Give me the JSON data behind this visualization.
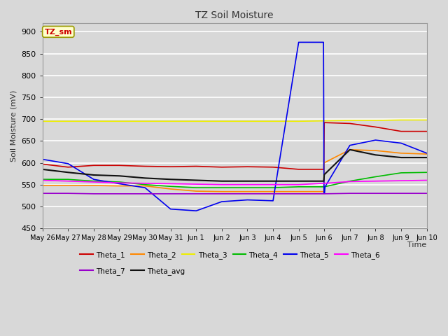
{
  "title": "TZ Soil Moisture",
  "ylabel": "Soil Moisture (mV)",
  "xlabel": "Time",
  "xlim": [
    0,
    15
  ],
  "ylim": [
    450,
    920
  ],
  "yticks": [
    450,
    500,
    550,
    600,
    650,
    700,
    750,
    800,
    850,
    900
  ],
  "xtick_labels": [
    "May 26",
    "May 27",
    "May 28",
    "May 29",
    "May 30",
    "May 31",
    "Jun 1",
    "Jun 2",
    "Jun 3",
    "Jun 4",
    "Jun 5",
    "Jun 6",
    "Jun 7",
    "Jun 8",
    "Jun 9",
    "Jun 10"
  ],
  "xtick_positions": [
    0,
    1,
    2,
    3,
    4,
    5,
    6,
    7,
    8,
    9,
    10,
    11,
    12,
    13,
    14,
    15
  ],
  "background_color": "#d8d8d8",
  "plot_background": "#d8d8d8",
  "grid_color": "#ffffff",
  "label_box": "TZ_sm",
  "series": {
    "Theta_1": {
      "color": "#cc0000",
      "linewidth": 1.2,
      "x": [
        0,
        1,
        2,
        3,
        4,
        5,
        6,
        7,
        8,
        9,
        10,
        10.98,
        11,
        12,
        13,
        14,
        15
      ],
      "y": [
        597,
        590,
        594,
        594,
        592,
        591,
        592,
        590,
        591,
        590,
        585,
        585,
        692,
        690,
        682,
        672,
        672
      ]
    },
    "Theta_2": {
      "color": "#ff8800",
      "linewidth": 1.2,
      "x": [
        0,
        1,
        2,
        3,
        4,
        5,
        6,
        7,
        8,
        9,
        10,
        10.98,
        11,
        12,
        13,
        14,
        15
      ],
      "y": [
        548,
        548,
        548,
        547,
        547,
        540,
        535,
        534,
        534,
        534,
        534,
        534,
        600,
        630,
        628,
        622,
        620
      ]
    },
    "Theta_3": {
      "color": "#eeee00",
      "linewidth": 1.2,
      "x": [
        0,
        1,
        2,
        3,
        4,
        5,
        6,
        7,
        8,
        9,
        10,
        11,
        12,
        13,
        14,
        15
      ],
      "y": [
        695,
        695,
        695,
        695,
        695,
        695,
        695,
        695,
        695,
        695,
        695,
        696,
        697,
        697,
        698,
        698
      ]
    },
    "Theta_4": {
      "color": "#00bb00",
      "linewidth": 1.2,
      "x": [
        0,
        1,
        2,
        3,
        4,
        5,
        6,
        7,
        8,
        9,
        10,
        11,
        12,
        13,
        14,
        15
      ],
      "y": [
        562,
        562,
        558,
        556,
        550,
        546,
        543,
        543,
        543,
        543,
        545,
        545,
        558,
        568,
        577,
        578
      ]
    },
    "Theta_5": {
      "color": "#0000ee",
      "linewidth": 1.2,
      "x": [
        0,
        1,
        2,
        3,
        4,
        5,
        6,
        7,
        8,
        9,
        10,
        10.97,
        10.99,
        11.0,
        11.01,
        11.03,
        12,
        13,
        14,
        15
      ],
      "y": [
        608,
        598,
        562,
        552,
        543,
        494,
        490,
        511,
        515,
        513,
        876,
        876,
        530,
        530,
        530,
        545,
        640,
        652,
        645,
        622
      ]
    },
    "Theta_6": {
      "color": "#ff00ff",
      "linewidth": 1.2,
      "x": [
        0,
        1,
        2,
        3,
        4,
        5,
        6,
        7,
        8,
        9,
        10,
        11,
        12,
        13,
        14,
        15
      ],
      "y": [
        560,
        558,
        556,
        554,
        553,
        552,
        551,
        550,
        550,
        550,
        550,
        553,
        557,
        558,
        559,
        560
      ]
    },
    "Theta_7": {
      "color": "#9900cc",
      "linewidth": 1.2,
      "x": [
        0,
        1,
        2,
        3,
        4,
        5,
        6,
        7,
        8,
        9,
        10,
        11,
        12,
        13,
        14,
        15
      ],
      "y": [
        530,
        530,
        529,
        529,
        529,
        529,
        529,
        529,
        529,
        529,
        529,
        529,
        530,
        530,
        530,
        530
      ]
    },
    "Theta_avg": {
      "color": "#111111",
      "linewidth": 1.5,
      "x": [
        0,
        1,
        2,
        3,
        4,
        5,
        6,
        7,
        8,
        9,
        10,
        10.98,
        11,
        12,
        13,
        14,
        15
      ],
      "y": [
        585,
        578,
        572,
        570,
        565,
        562,
        560,
        558,
        558,
        558,
        558,
        558,
        573,
        630,
        618,
        612,
        612
      ]
    }
  },
  "legend_row1": [
    "Theta_1",
    "Theta_2",
    "Theta_3",
    "Theta_4",
    "Theta_5",
    "Theta_6"
  ],
  "legend_row2": [
    "Theta_7",
    "Theta_avg"
  ]
}
